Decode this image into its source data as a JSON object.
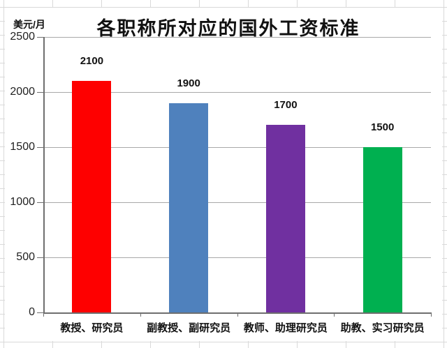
{
  "chart_data": {
    "type": "bar",
    "title": "各职称所对应的国外工资标准",
    "ylabel": "美元/月",
    "xlabel": "",
    "categories": [
      "教授、研究员",
      "副教授、副研究员",
      "教师、助理研究员",
      "助教、实习研究员"
    ],
    "values": [
      2100,
      1900,
      1700,
      1500
    ],
    "data_labels": [
      "2100",
      "1900",
      "1700",
      "1500"
    ],
    "bar_colors": [
      "#fe0000",
      "#4f81bd",
      "#7030a0",
      "#00b050"
    ],
    "ylim": [
      0,
      2500
    ],
    "yticks": [
      0,
      500,
      1000,
      1500,
      2000,
      2500
    ],
    "ytick_labels": [
      "0",
      "500",
      "1000",
      "1500",
      "2000",
      "2500"
    ],
    "grid": "horizontal",
    "legend": "none",
    "colors": {
      "gridline": "#a8a8a8",
      "axis": "#6e6e6e",
      "text": "#111111",
      "background": "#ffffff"
    }
  }
}
